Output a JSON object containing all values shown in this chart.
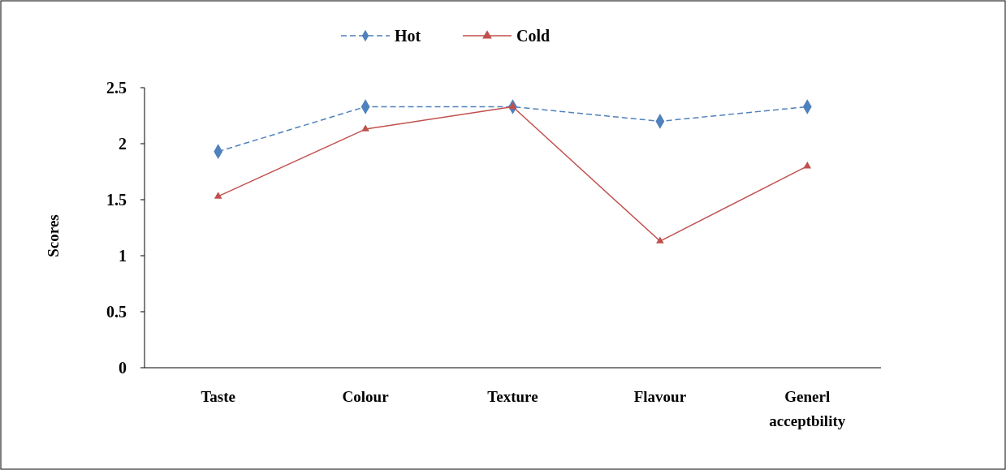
{
  "chart_data": {
    "type": "line",
    "ylabel": "Scores",
    "categories": [
      "Taste",
      "Colour",
      "Texture",
      "Flavour",
      "Generl acceptbility"
    ],
    "series": [
      {
        "name": "Hot",
        "color": "#4f81bd",
        "values": [
          1.93,
          2.33,
          2.33,
          2.2,
          2.33
        ],
        "marker": "diamond",
        "line_style": "dashed"
      },
      {
        "name": "Cold",
        "color": "#c0504d",
        "values": [
          1.53,
          2.13,
          2.33,
          1.13,
          1.8
        ],
        "marker": "triangle",
        "line_style": "solid"
      }
    ],
    "ylim": [
      0,
      2.5
    ],
    "yticks": [
      0,
      0.5,
      1,
      1.5,
      2,
      2.5
    ],
    "legend": "top",
    "grid": false
  }
}
